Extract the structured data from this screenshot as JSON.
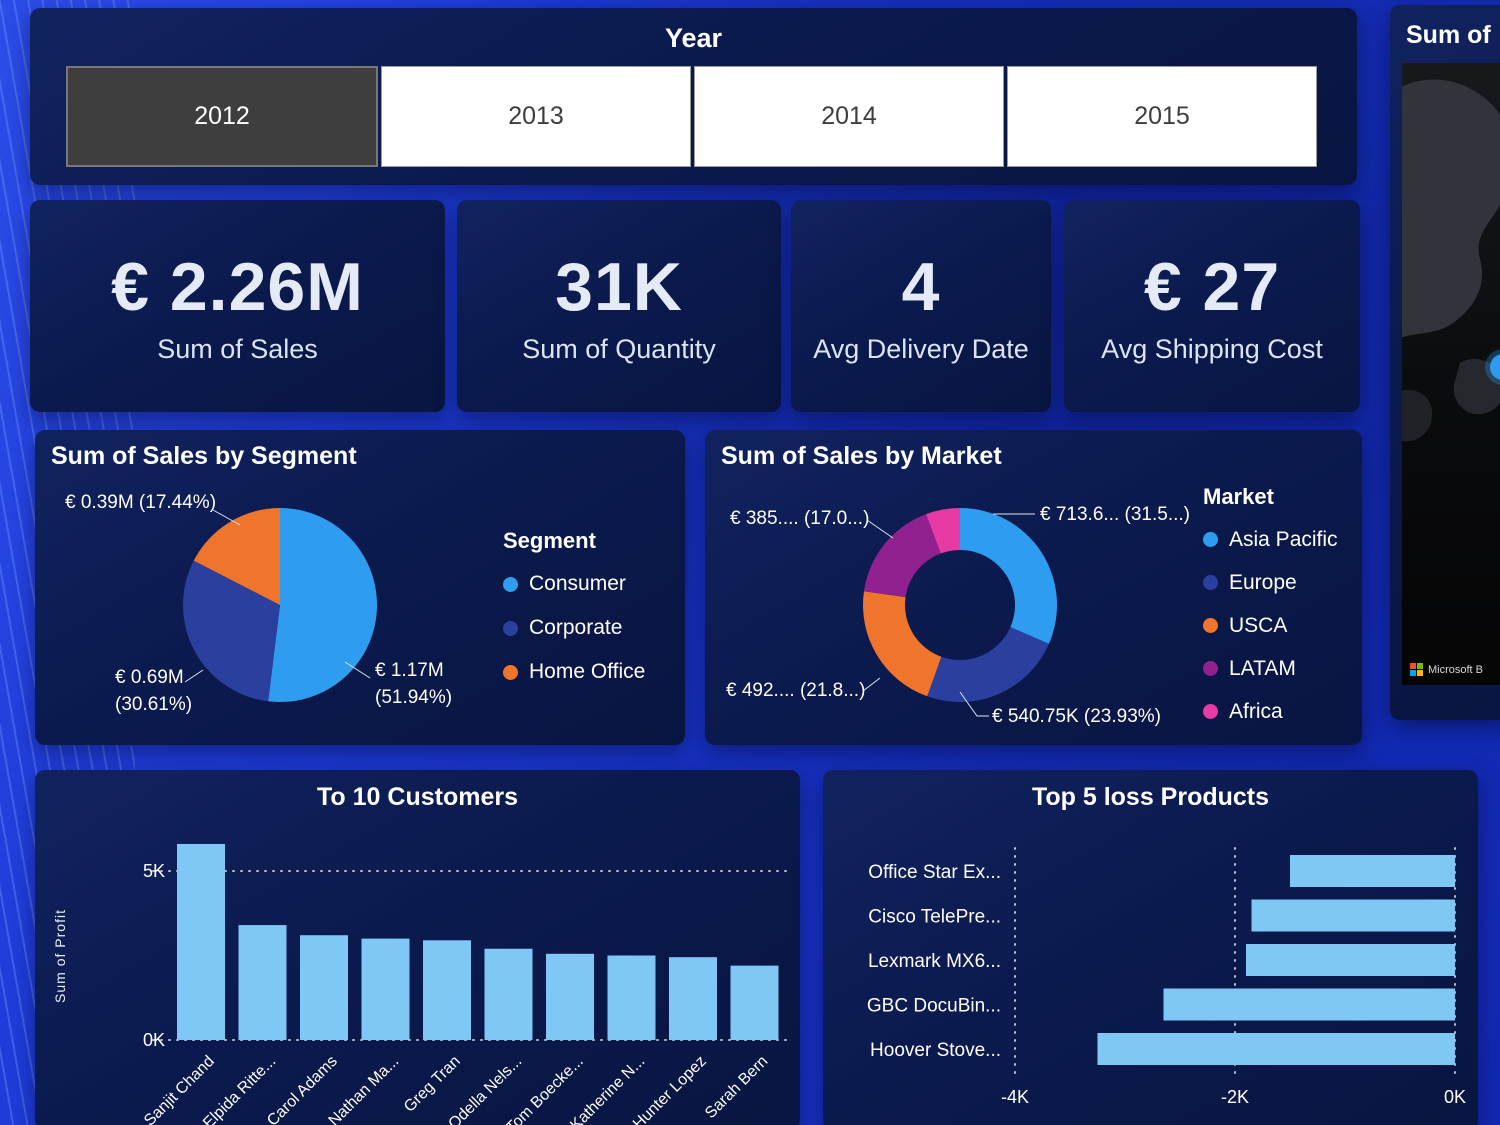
{
  "theme": {
    "background_blue": "#1f3dda",
    "panel_navy": "#0b1a4e",
    "bar_blue": "#7fc7f4",
    "text_white": "#ffffff"
  },
  "year_slicer": {
    "title": "Year",
    "options": [
      {
        "label": "2012",
        "selected": true
      },
      {
        "label": "2013",
        "selected": false
      },
      {
        "label": "2014",
        "selected": false
      },
      {
        "label": "2015",
        "selected": false
      }
    ]
  },
  "kpi_cards": [
    {
      "value": "€ 2.26M",
      "label": "Sum of Sales"
    },
    {
      "value": "31K",
      "label": "Sum of Quantity"
    },
    {
      "value": "4",
      "label": "Avg Delivery Date"
    },
    {
      "value": "€ 27",
      "label": "Avg Shipping Cost"
    }
  ],
  "map_panel": {
    "title": "Sum of",
    "attribution": "Microsoft B"
  },
  "chart_data": [
    {
      "id": "segment_pie",
      "type": "pie",
      "title": "Sum of Sales by Segment",
      "legend_title": "Segment",
      "legend_position": "right",
      "slices": [
        {
          "label": "Consumer",
          "pct": 51.94,
          "data_label": "€ 1.17M (51.94%)",
          "color": "#2e9df0"
        },
        {
          "label": "Corporate",
          "pct": 30.61,
          "data_label": "€ 0.69M (30.61%)",
          "color": "#2b3f9e"
        },
        {
          "label": "Home Office",
          "pct": 17.44,
          "data_label": "€ 0.39M (17.44%)",
          "color": "#f0752c"
        }
      ]
    },
    {
      "id": "market_donut",
      "type": "pie",
      "subtype": "donut",
      "title": "Sum of Sales by Market",
      "legend_title": "Market",
      "legend_position": "right",
      "slices": [
        {
          "label": "Asia Pacific",
          "pct": 31.57,
          "data_label": "€ 713.6... (31.5...)",
          "color": "#2e9df0"
        },
        {
          "label": "Europe",
          "pct": 23.93,
          "data_label": "€ 540.75K (23.93%)",
          "color": "#2b3f9e"
        },
        {
          "label": "USCA",
          "pct": 21.77,
          "data_label": "€ 492.... (21.8...)",
          "color": "#f0752c"
        },
        {
          "label": "LATAM",
          "pct": 17.04,
          "data_label": "€ 385.... (17.0...)",
          "color": "#90218f"
        },
        {
          "label": "Africa",
          "pct": 5.69,
          "data_label": "",
          "color": "#e73aa4"
        }
      ]
    },
    {
      "id": "customers_bar",
      "type": "bar",
      "title": "To 10 Customers",
      "ylabel": "Sum of Profit",
      "ylim": [
        0,
        6.5
      ],
      "grid": true,
      "y_ticks": [
        {
          "label": "5K",
          "value": 5
        },
        {
          "label": "0K",
          "value": 0
        }
      ],
      "categories": [
        "Sanjit Chand",
        "Elpida Ritte...",
        "Carol Adams",
        "Nathan Ma...",
        "Greg Tran",
        "Odella Nels...",
        "Tom Boecke...",
        "Katherine N...",
        "Hunter Lopez",
        "Sarah Bern"
      ],
      "values": [
        5.8,
        3.4,
        3.1,
        3.0,
        2.95,
        2.7,
        2.55,
        2.5,
        2.45,
        2.2
      ],
      "bar_color": "#7fc7f4"
    },
    {
      "id": "loss_products_bar",
      "type": "bar-horizontal",
      "title": "Top 5 loss Products",
      "xlim": [
        -4,
        0
      ],
      "grid": true,
      "x_ticks": [
        {
          "label": "-4K",
          "value": -4
        },
        {
          "label": "-2K",
          "value": -2
        },
        {
          "label": "0K",
          "value": 0
        }
      ],
      "categories": [
        "Office Star Ex...",
        "Cisco TelePre...",
        "Lexmark MX6...",
        "GBC DocuBin...",
        "Hoover Stove..."
      ],
      "values": [
        -1.5,
        -1.85,
        -1.9,
        -2.65,
        -3.25
      ],
      "bar_color": "#7fc7f4"
    }
  ]
}
